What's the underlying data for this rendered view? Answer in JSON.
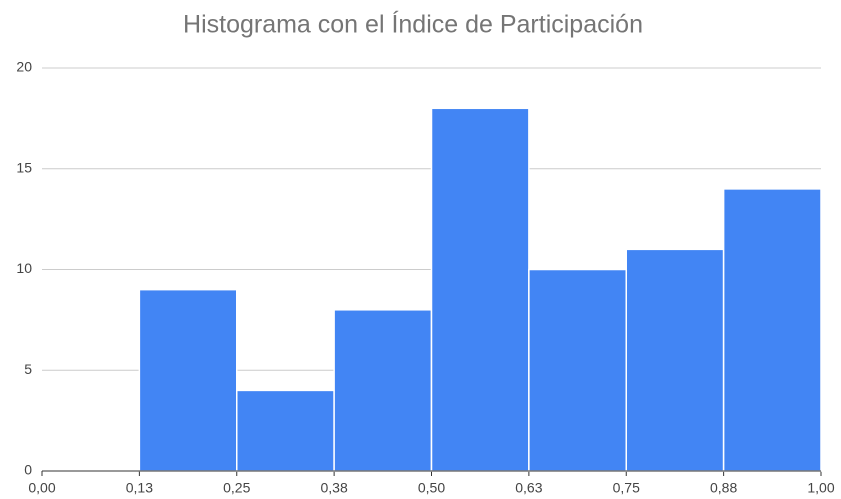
{
  "chart_data": {
    "type": "histogram",
    "title": "Histograma con el Índice de Participación",
    "bins": [
      0,
      0.125,
      0.25,
      0.375,
      0.5,
      0.625,
      0.75,
      0.875,
      1
    ],
    "values": [
      0,
      9,
      4,
      8,
      18,
      10,
      11,
      14
    ],
    "color": "#4285f4",
    "xlim": [
      0,
      1
    ],
    "xticks": [
      {
        "value": 0,
        "label": "0,00"
      },
      {
        "value": 0.125,
        "label": "0,13"
      },
      {
        "value": 0.25,
        "label": "0,25"
      },
      {
        "value": 0.375,
        "label": "0,38"
      },
      {
        "value": 0.5,
        "label": "0,50"
      },
      {
        "value": 0.625,
        "label": "0,63"
      },
      {
        "value": 0.75,
        "label": "0,75"
      },
      {
        "value": 0.875,
        "label": "0,88"
      },
      {
        "value": 1,
        "label": "1,00"
      }
    ],
    "ylim": [
      0,
      20
    ],
    "yticks": [
      0,
      5,
      10,
      15,
      20
    ],
    "grid": true
  }
}
